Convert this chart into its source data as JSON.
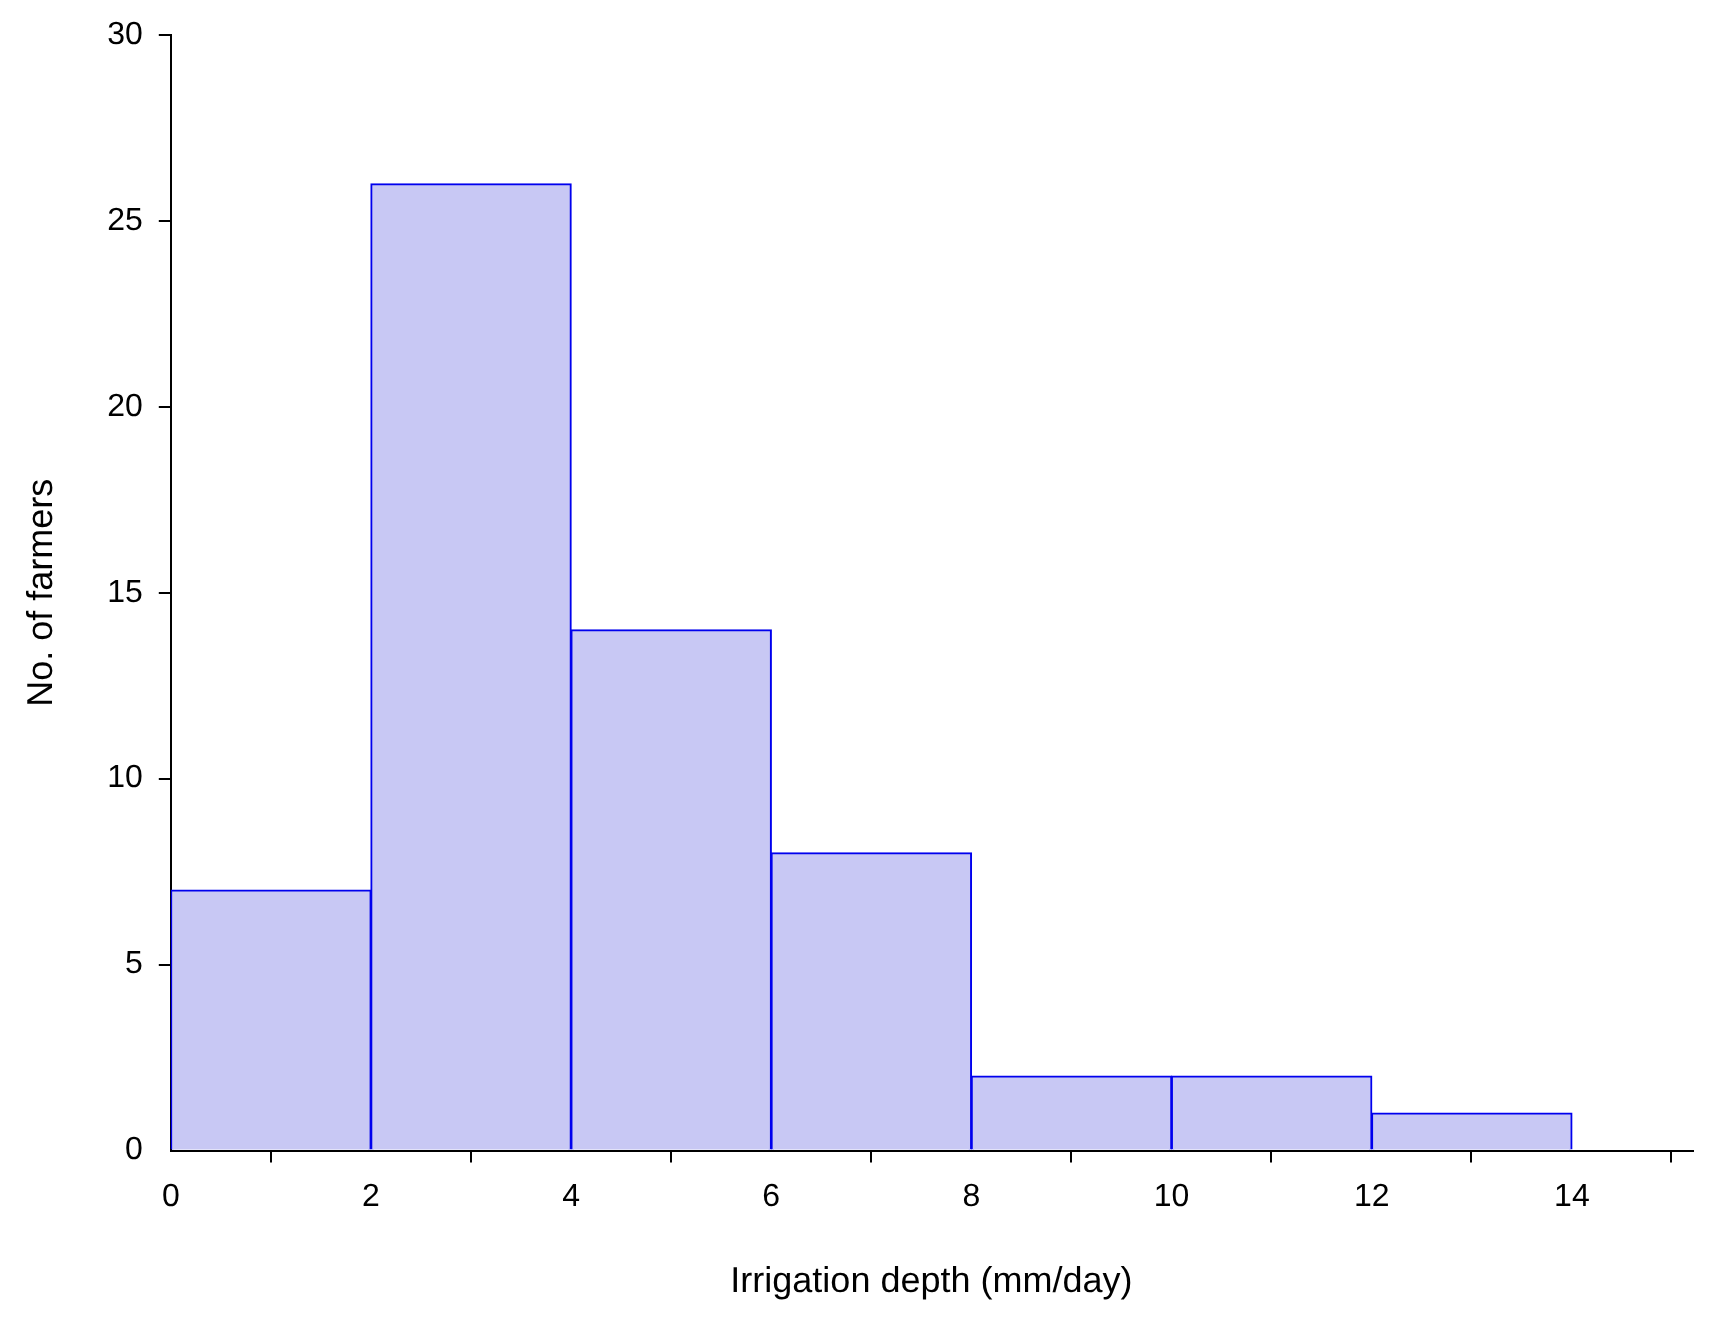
{
  "chart_data": {
    "type": "histogram",
    "xlabel": "Irrigation depth (mm/day)",
    "ylabel": "No. of farmers",
    "bins": [
      0,
      2,
      4,
      6,
      8,
      10,
      12,
      14
    ],
    "values": [
      7,
      26,
      14,
      8,
      2,
      2,
      1
    ],
    "color": "#c8c8f4",
    "xlim": [
      0,
      15.2
    ],
    "xticks": [
      0,
      2,
      4,
      6,
      8,
      10,
      12,
      14
    ],
    "ylim": [
      0,
      30
    ],
    "yticks": [
      0,
      5,
      10,
      15,
      20,
      25,
      30
    ],
    "grid": false,
    "legend": false
  }
}
